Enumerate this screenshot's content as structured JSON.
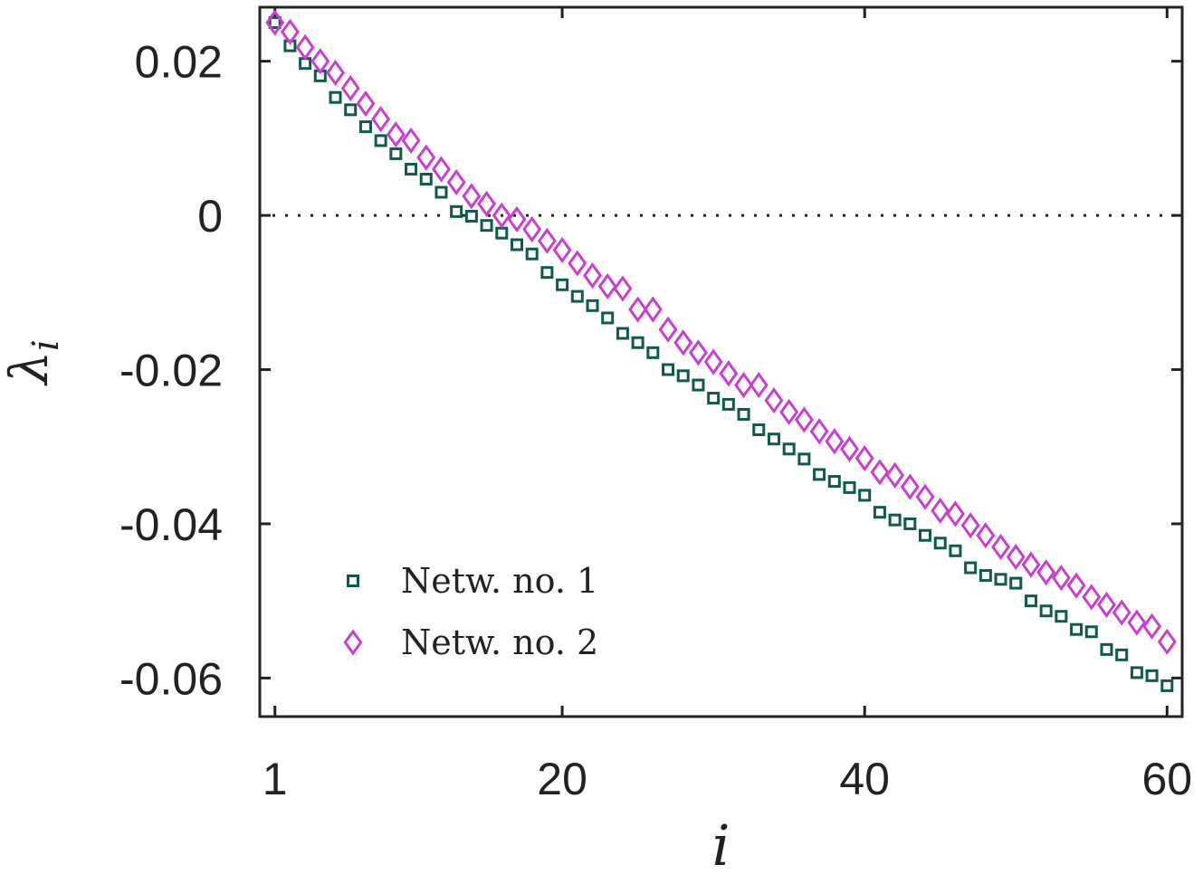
{
  "chart_data": {
    "type": "scatter",
    "xlabel": "i",
    "ylabel": "λ",
    "ylabel_subscript": "i",
    "xlim": [
      0,
      61
    ],
    "ylim": [
      -0.065,
      0.027
    ],
    "xticks": [
      1,
      20,
      40,
      60
    ],
    "yticks": [
      0.02,
      0,
      -0.02,
      -0.04,
      -0.06
    ],
    "ytick_labels": [
      "0.02",
      "0",
      "-0.02",
      "-0.04",
      "-0.06"
    ],
    "reference_line": {
      "y": 0,
      "style": "dotted"
    },
    "grid": false,
    "legend_position": "lower-left",
    "series": [
      {
        "name": "Netw. no. 1",
        "marker": "square",
        "color": "#0e5a4c",
        "x": [
          1,
          2,
          3,
          4,
          5,
          6,
          7,
          8,
          9,
          10,
          11,
          12,
          13,
          14,
          15,
          16,
          17,
          18,
          19,
          20,
          21,
          22,
          23,
          24,
          25,
          26,
          27,
          28,
          29,
          30,
          31,
          32,
          33,
          34,
          35,
          36,
          37,
          38,
          39,
          40,
          41,
          42,
          43,
          44,
          45,
          46,
          47,
          48,
          49,
          50,
          51,
          52,
          53,
          54,
          55,
          56,
          57,
          58,
          59,
          60
        ],
        "y": [
          0.025,
          0.022,
          0.0197,
          0.0181,
          0.0153,
          0.0137,
          0.0115,
          0.0097,
          0.008,
          0.006,
          0.0047,
          0.003,
          0.0005,
          -0.0001,
          -0.0013,
          -0.0023,
          -0.0038,
          -0.005,
          -0.0074,
          -0.009,
          -0.0105,
          -0.0117,
          -0.0133,
          -0.0153,
          -0.0165,
          -0.0178,
          -0.02,
          -0.0208,
          -0.022,
          -0.0237,
          -0.0245,
          -0.0258,
          -0.0278,
          -0.029,
          -0.0303,
          -0.0316,
          -0.0336,
          -0.0345,
          -0.0353,
          -0.0363,
          -0.0385,
          -0.0395,
          -0.04,
          -0.0415,
          -0.0425,
          -0.0435,
          -0.0457,
          -0.0467,
          -0.0472,
          -0.0477,
          -0.05,
          -0.0513,
          -0.052,
          -0.0537,
          -0.054,
          -0.0563,
          -0.057,
          -0.0593,
          -0.0597,
          -0.061
        ]
      },
      {
        "name": "Netw. no. 2",
        "marker": "diamond",
        "color": "#c93fcf",
        "x": [
          1,
          2,
          3,
          4,
          5,
          6,
          7,
          8,
          9,
          10,
          11,
          12,
          13,
          14,
          15,
          16,
          17,
          18,
          19,
          20,
          21,
          22,
          23,
          24,
          25,
          26,
          27,
          28,
          29,
          30,
          31,
          32,
          33,
          34,
          35,
          36,
          37,
          38,
          39,
          40,
          41,
          42,
          43,
          44,
          45,
          46,
          47,
          48,
          49,
          50,
          51,
          52,
          53,
          54,
          55,
          56,
          57,
          58,
          59,
          60
        ],
        "y": [
          0.025,
          0.0238,
          0.0218,
          0.02,
          0.0185,
          0.0165,
          0.0145,
          0.0125,
          0.0105,
          0.0097,
          0.0075,
          0.006,
          0.0043,
          0.0025,
          0.0015,
          0.0,
          -0.0005,
          -0.0018,
          -0.0033,
          -0.0045,
          -0.0062,
          -0.0078,
          -0.0092,
          -0.0095,
          -0.0122,
          -0.0122,
          -0.0148,
          -0.0165,
          -0.0178,
          -0.019,
          -0.0205,
          -0.022,
          -0.022,
          -0.024,
          -0.0255,
          -0.0265,
          -0.028,
          -0.0293,
          -0.0303,
          -0.0315,
          -0.0333,
          -0.0337,
          -0.0352,
          -0.0365,
          -0.0383,
          -0.0387,
          -0.0402,
          -0.0415,
          -0.043,
          -0.0443,
          -0.0453,
          -0.0463,
          -0.047,
          -0.048,
          -0.0495,
          -0.0505,
          -0.0515,
          -0.0528,
          -0.0533,
          -0.0553
        ]
      }
    ]
  }
}
